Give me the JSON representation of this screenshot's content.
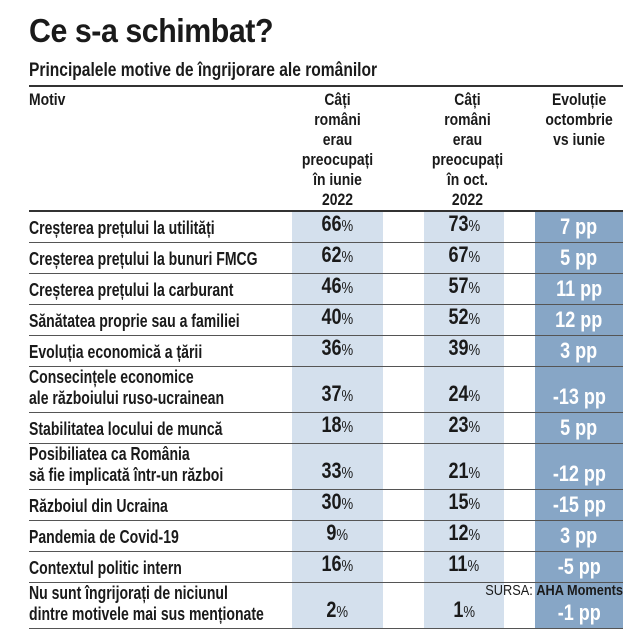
{
  "title": "Ce s-a schimbat?",
  "subtitle": "Principalele motive de îngrijorare ale românilor",
  "headers": {
    "motiv": "Motiv",
    "june": [
      "Câți români",
      "erau preocupați",
      "în iunie 2022"
    ],
    "oct": [
      "Câți români",
      "erau preocupați",
      "în oct. 2022"
    ],
    "evol": [
      "Evoluție",
      "octombrie",
      "vs iunie"
    ]
  },
  "rows": [
    {
      "motiv": [
        "Creșterea prețului la utilități"
      ],
      "june": "66",
      "oct": "73",
      "evol": "7 pp"
    },
    {
      "motiv": [
        "Creșterea prețului la bunuri FMCG"
      ],
      "june": "62",
      "oct": "67",
      "evol": "5 pp"
    },
    {
      "motiv": [
        "Creșterea prețului la carburant"
      ],
      "june": "46",
      "oct": "57",
      "evol": "11 pp"
    },
    {
      "motiv": [
        "Sănătatea proprie sau a familiei"
      ],
      "june": "40",
      "oct": "52",
      "evol": "12 pp"
    },
    {
      "motiv": [
        "Evoluția economică a țării"
      ],
      "june": "36",
      "oct": "39",
      "evol": "3 pp"
    },
    {
      "motiv": [
        "Consecințele economice",
        "ale războiului ruso-ucrainean"
      ],
      "june": "37",
      "oct": "24",
      "evol": "-13 pp"
    },
    {
      "motiv": [
        "Stabilitatea locului de muncă"
      ],
      "june": "18",
      "oct": "23",
      "evol": "5 pp"
    },
    {
      "motiv": [
        "Posibiliatea ca România",
        "să fie implicată într-un război"
      ],
      "june": "33",
      "oct": "21",
      "evol": "-12 pp"
    },
    {
      "motiv": [
        "Războiul din Ucraina"
      ],
      "june": "30",
      "oct": "15",
      "evol": "-15 pp"
    },
    {
      "motiv": [
        "Pandemia de Covid-19"
      ],
      "june": "9",
      "oct": "12",
      "evol": "3 pp"
    },
    {
      "motiv": [
        "Contextul politic intern"
      ],
      "june": "16",
      "oct": "11",
      "evol": "-5 pp"
    },
    {
      "motiv": [
        "Nu sunt îngrijorați de niciunul",
        "dintre motivele mai sus menționate"
      ],
      "june": "2",
      "oct": "1",
      "evol": "-1 pp"
    }
  ],
  "percent": "%",
  "source": {
    "label": "SURSA:",
    "name": "AHA Moments"
  },
  "colors": {
    "light": "#d4e0ed",
    "dark": "#87a6c6"
  }
}
